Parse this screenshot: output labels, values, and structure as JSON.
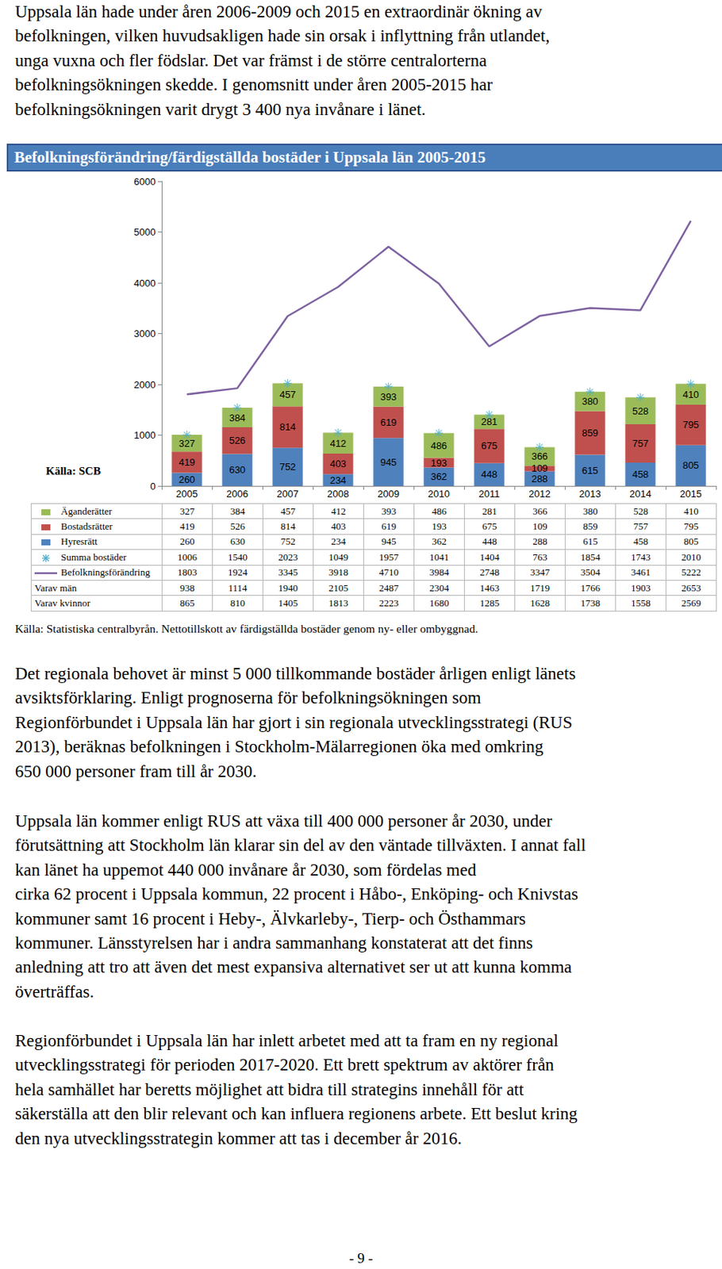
{
  "intro": {
    "lines": [
      "Uppsala län hade under åren 2006-2009 och 2015 en extraordinär ökning av",
      "befolkningen, vilken huvudsakligen hade sin orsak i inflyttning från utlandet,",
      "unga vuxna och fler födslar. Det var främst i de större centralorterna",
      "befolkningsökningen skedde. I genomsnitt under åren 2005-2015 har",
      "befolkningsökningen varit drygt 3 400 nya invånare i länet."
    ]
  },
  "chart_data": {
    "type": "bar",
    "title": "Befolkningsförändring/färdigställda bostäder i Uppsala län 2005-2015",
    "annotations": [
      "Källa: SCB"
    ],
    "categories": [
      "2005",
      "2006",
      "2007",
      "2008",
      "2009",
      "2010",
      "2011",
      "2012",
      "2013",
      "2014",
      "2015"
    ],
    "stacked": true,
    "grid": false,
    "ylim": [
      0,
      6000
    ],
    "yticks": [
      0,
      1000,
      2000,
      3000,
      4000,
      5000,
      6000
    ],
    "series": [
      {
        "name": "Äganderätter",
        "type": "bar",
        "color": "#9bbb59",
        "data_labels": true,
        "values": [
          327,
          384,
          457,
          412,
          393,
          486,
          281,
          366,
          380,
          528,
          410
        ]
      },
      {
        "name": "Bostadsrätter",
        "type": "bar",
        "color": "#c0504d",
        "data_labels": true,
        "values": [
          419,
          526,
          814,
          403,
          619,
          193,
          675,
          109,
          859,
          757,
          795
        ]
      },
      {
        "name": "Hyresrätt",
        "type": "bar",
        "color": "#4f81bd",
        "data_labels": true,
        "values": [
          260,
          630,
          752,
          234,
          945,
          362,
          448,
          288,
          615,
          458,
          805
        ]
      },
      {
        "name": "Summa bostäder",
        "type": "scatter",
        "color": "#4bacc6",
        "marker": "asterisk",
        "values": [
          1006,
          1540,
          2023,
          1049,
          1957,
          1041,
          1404,
          763,
          1854,
          1743,
          2010
        ]
      },
      {
        "name": "Befolkningsförändring",
        "type": "line",
        "color": "#7e62a1",
        "line_style": "solid",
        "values": [
          1803,
          1924,
          3345,
          3918,
          4710,
          3984,
          2748,
          3347,
          3504,
          3461,
          5222
        ]
      },
      {
        "name": "Varav män",
        "type": "table",
        "values": [
          938,
          1114,
          1940,
          2105,
          2487,
          2304,
          1463,
          1719,
          1766,
          1903,
          2653
        ]
      },
      {
        "name": "Varav kvinnor",
        "type": "table",
        "values": [
          865,
          810,
          1405,
          1813,
          2223,
          1680,
          1285,
          1628,
          1738,
          1558,
          2569
        ]
      }
    ]
  },
  "chart_source": "Källa: Statistiska centralbyrån. Nettotillskott av färdigställda bostäder genom ny- eller ombyggnad.",
  "sections": [
    {
      "lines": [
        "Det regionala behovet är minst 5 000 tillkommande bostäder årligen enligt länets",
        "avsiktsförklaring. Enligt prognoserna för befolkningsökningen som",
        "Regionförbundet i Uppsala län har gjort i sin regionala utvecklingsstrategi (RUS",
        "2013), beräknas befolkningen i Stockholm-Mälarregionen öka med omkring",
        "650 000 personer fram till år 2030."
      ]
    },
    {
      "lines": [
        "Uppsala län kommer enligt RUS att växa till 400 000 personer år 2030, under",
        "förutsättning att Stockholm län klarar sin del av den väntade tillväxten. I annat fall",
        "kan länet ha uppemot 440 000 invånare år 2030, som fördelas med",
        "cirka 62 procent i Uppsala kommun, 22 procent i Håbo-, Enköping- och Knivstas",
        "kommuner samt 16 procent i Heby-, Älvkarleby-, Tierp- och Östhammars",
        "kommuner. Länsstyrelsen har i andra sammanhang konstaterat att det finns",
        "anledning att tro att även det mest expansiva alternativet ser ut att kunna komma",
        "överträffas."
      ]
    },
    {
      "lines": [
        "Regionförbundet i Uppsala län har inlett arbetet med att ta fram en ny regional",
        "utvecklingsstrategi för perioden 2017-2020. Ett brett spektrum av aktörer från",
        "hela samhället har beretts möjlighet att bidra till strategins innehåll för att",
        "säkerställa att den blir relevant och kan influera regionens arbete. Ett beslut kring",
        "den nya utvecklingsstrategin kommer att tas i december år 2016."
      ]
    }
  ],
  "page_number": "- 9 -"
}
